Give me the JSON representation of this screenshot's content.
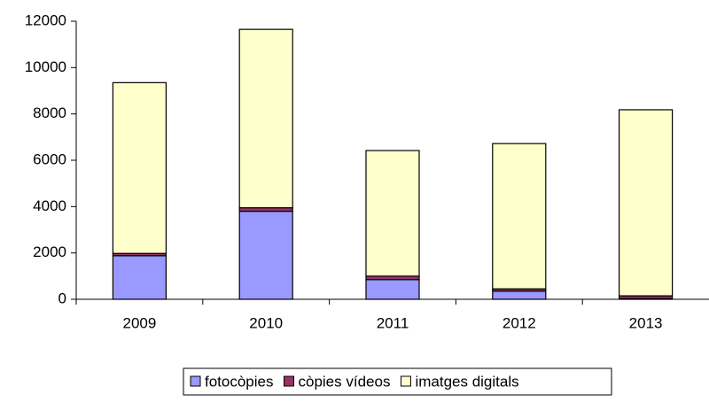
{
  "chart_data": {
    "type": "stacked_bar",
    "categories": [
      "2009",
      "2010",
      "2011",
      "2012",
      "2013"
    ],
    "series": [
      {
        "name": "fotocòpies",
        "color": "#9999ff",
        "values": [
          1880,
          3800,
          850,
          350,
          30
        ]
      },
      {
        "name": "còpies vídeos",
        "color": "#993366",
        "values": [
          100,
          150,
          150,
          100,
          120
        ]
      },
      {
        "name": "imatges digitals",
        "color": "#ffffcc",
        "values": [
          7370,
          7700,
          5420,
          6270,
          8030
        ]
      }
    ],
    "ylim": [
      0,
      12000
    ],
    "yticks": [
      0,
      2000,
      4000,
      6000,
      8000,
      10000,
      12000
    ],
    "grid": false,
    "legend": "bottom"
  }
}
